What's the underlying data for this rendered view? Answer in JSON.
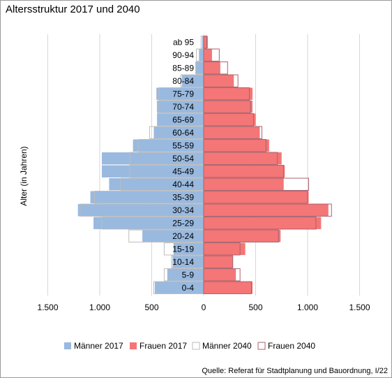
{
  "title": "Altersstruktur 2017 und 2040",
  "source": "Quelle: Referat für Stadtplanung und Bauordnung, I/22",
  "colors": {
    "men2017": "#99b9df",
    "women2017": "#f47676",
    "outline2040": "#bdbdbd",
    "outline_women2040": "#a8626d",
    "grid": "#d6d6d6"
  },
  "chart_data": {
    "type": "bar",
    "orientation": "horizontal-population-pyramid",
    "ylabel": "Alter (in Jahren)",
    "xlim": [
      -1500,
      1500
    ],
    "xticks": [
      -1500,
      -1000,
      -500,
      0,
      500,
      1000,
      1500
    ],
    "xtick_labels": [
      "1.500",
      "1.000",
      "500",
      "0",
      "500",
      "1.000",
      "1.500"
    ],
    "grid": true,
    "legend_position": "bottom",
    "categories": [
      "ab 95",
      "90-94",
      "85-89",
      "80-84",
      "75-79",
      "70-74",
      "65-69",
      "60-64",
      "55-59",
      "50-54",
      "45-49",
      "40-44",
      "35-39",
      "30-34",
      "25-29",
      "20-24",
      "15-19",
      "10-14",
      "5-9",
      "0-4"
    ],
    "series": [
      {
        "name": "Männer 2017",
        "side": "left",
        "style": "filled",
        "values": [
          15,
          45,
          80,
          210,
          455,
          450,
          450,
          480,
          680,
          980,
          980,
          910,
          1090,
          1210,
          1060,
          590,
          290,
          300,
          350,
          470
        ]
      },
      {
        "name": "Frauen 2017",
        "side": "right",
        "style": "filled",
        "values": [
          40,
          80,
          160,
          290,
          470,
          470,
          500,
          540,
          630,
          750,
          780,
          770,
          1010,
          1200,
          1130,
          740,
          400,
          280,
          310,
          470
        ]
      },
      {
        "name": "Männer 2040",
        "side": "left",
        "style": "outline",
        "values": [
          25,
          70,
          75,
          220,
          430,
          440,
          445,
          520,
          630,
          710,
          710,
          800,
          1050,
          1190,
          980,
          720,
          380,
          310,
          380,
          480
        ]
      },
      {
        "name": "Frauen 2040",
        "side": "right",
        "style": "outline",
        "values": [
          30,
          150,
          230,
          330,
          440,
          450,
          480,
          560,
          600,
          710,
          770,
          1010,
          1000,
          1230,
          1080,
          720,
          350,
          280,
          350,
          460
        ]
      }
    ]
  }
}
